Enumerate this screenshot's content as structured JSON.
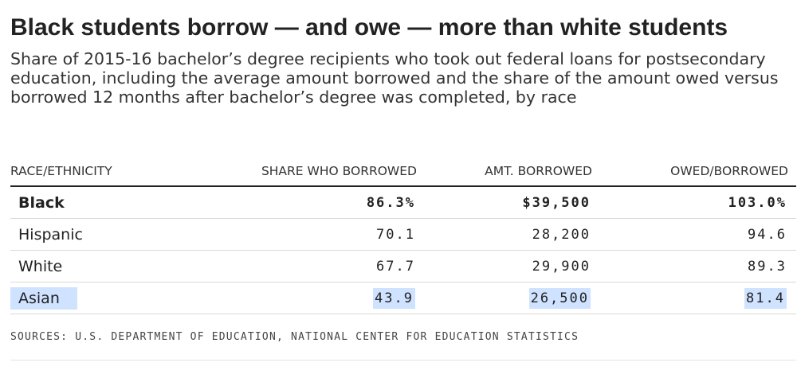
{
  "chart_data": {
    "type": "table",
    "title": "Black students borrow — and owe — more than white students",
    "subtitle": "Share of 2015-16 bachelor’s degree recipients who took out federal loans for postsecondary education, including the average amount borrowed and the share of the amount owed versus borrowed 12 months after bachelor’s degree was completed, by race",
    "columns": [
      "RACE/ETHNICITY",
      "SHARE WHO BORROWED",
      "AMT. BORROWED",
      "OWED/BORROWED"
    ],
    "rows": [
      {
        "race": "Black",
        "share_label": "86.3%",
        "amount_label": "$39,500",
        "owed_label": "103.0%",
        "share": 86.3,
        "amount": 39500,
        "owed": 103.0,
        "bold": true,
        "highlighted": false
      },
      {
        "race": "Hispanic",
        "share_label": "70.1",
        "amount_label": "28,200",
        "owed_label": "94.6",
        "share": 70.1,
        "amount": 28200,
        "owed": 94.6,
        "bold": false,
        "highlighted": false
      },
      {
        "race": "White",
        "share_label": "67.7",
        "amount_label": "29,900",
        "owed_label": "89.3",
        "share": 67.7,
        "amount": 29900,
        "owed": 89.3,
        "bold": false,
        "highlighted": false
      },
      {
        "race": "Asian",
        "share_label": "43.9",
        "amount_label": "26,500",
        "owed_label": "81.4",
        "share": 43.9,
        "amount": 26500,
        "owed": 81.4,
        "bold": false,
        "highlighted": true
      }
    ],
    "source": "SOURCES: U.S. DEPARTMENT OF EDUCATION, NATIONAL CENTER FOR EDUCATION STATISTICS"
  },
  "colors": {
    "text": "#222222",
    "highlight": "#cfe2ff",
    "rule": "#d9d9d9"
  }
}
